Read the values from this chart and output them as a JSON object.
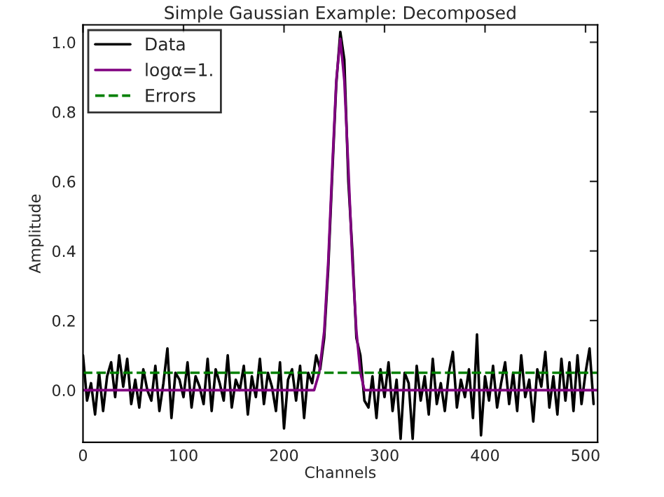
{
  "chart_data": {
    "type": "line",
    "title": "Simple Gaussian Example: Decomposed",
    "xlabel": "Channels",
    "ylabel": "Amplitude",
    "series": [
      {
        "name": "Data",
        "color": "#000000",
        "line_style": "solid",
        "x": [
          0,
          4,
          8,
          12,
          16,
          20,
          24,
          28,
          32,
          36,
          40,
          44,
          48,
          52,
          56,
          60,
          64,
          68,
          72,
          76,
          80,
          84,
          88,
          92,
          96,
          100,
          104,
          108,
          112,
          116,
          120,
          124,
          128,
          132,
          136,
          140,
          144,
          148,
          152,
          156,
          160,
          164,
          168,
          172,
          176,
          180,
          184,
          188,
          192,
          196,
          200,
          204,
          208,
          212,
          216,
          220,
          224,
          228,
          232,
          236,
          240,
          244,
          248,
          252,
          256,
          260,
          264,
          268,
          272,
          276,
          280,
          284,
          288,
          292,
          296,
          300,
          304,
          308,
          312,
          316,
          320,
          324,
          328,
          332,
          336,
          340,
          344,
          348,
          352,
          356,
          360,
          364,
          368,
          372,
          376,
          380,
          384,
          388,
          392,
          396,
          400,
          404,
          408,
          412,
          416,
          420,
          424,
          428,
          432,
          436,
          440,
          444,
          448,
          452,
          456,
          460,
          464,
          468,
          472,
          476,
          480,
          484,
          488,
          492,
          496,
          500,
          504,
          508
        ],
        "values": [
          0.1,
          -0.03,
          0.02,
          -0.07,
          0.05,
          -0.06,
          0.04,
          0.08,
          -0.02,
          0.1,
          0.01,
          0.09,
          -0.04,
          0.03,
          -0.05,
          0.06,
          0.0,
          -0.03,
          0.07,
          -0.06,
          0.02,
          0.12,
          -0.08,
          0.05,
          0.03,
          -0.02,
          0.08,
          -0.05,
          0.04,
          0.01,
          -0.04,
          0.09,
          -0.06,
          0.06,
          0.02,
          -0.03,
          0.1,
          -0.05,
          0.03,
          0.0,
          0.07,
          -0.07,
          0.04,
          -0.02,
          0.09,
          -0.04,
          0.05,
          0.01,
          -0.06,
          0.08,
          -0.11,
          0.03,
          0.06,
          -0.03,
          0.07,
          -0.08,
          0.05,
          0.02,
          0.1,
          0.06,
          0.15,
          0.35,
          0.62,
          0.88,
          1.03,
          0.95,
          0.6,
          0.4,
          0.15,
          0.1,
          -0.03,
          -0.05,
          0.04,
          -0.08,
          0.06,
          -0.02,
          0.08,
          -0.06,
          0.03,
          -0.14,
          0.05,
          0.02,
          -0.14,
          0.07,
          -0.03,
          0.04,
          -0.07,
          0.09,
          -0.04,
          0.02,
          -0.06,
          0.05,
          0.11,
          -0.05,
          0.03,
          -0.02,
          0.06,
          -0.08,
          0.16,
          -0.13,
          0.04,
          -0.03,
          0.07,
          -0.05,
          0.02,
          0.08,
          -0.04,
          0.05,
          -0.06,
          0.1,
          -0.02,
          0.03,
          -0.09,
          0.06,
          0.01,
          0.11,
          -0.05,
          0.04,
          -0.07,
          0.09,
          -0.03,
          0.08,
          -0.06,
          0.1,
          -0.04,
          0.05,
          0.12,
          -0.04
        ]
      },
      {
        "name": "logα=1.",
        "color": "#800080",
        "line_style": "solid",
        "x": [
          0,
          230,
          235,
          240,
          244,
          248,
          252,
          256,
          260,
          264,
          268,
          272,
          276,
          280,
          512
        ],
        "values": [
          0.0,
          0.0,
          0.05,
          0.17,
          0.37,
          0.64,
          0.89,
          1.01,
          0.89,
          0.64,
          0.37,
          0.17,
          0.05,
          0.0,
          0.0
        ]
      },
      {
        "name": "Errors",
        "color": "#008000",
        "line_style": "dashed",
        "x": [
          0,
          512
        ],
        "values": [
          0.05,
          0.05
        ]
      }
    ],
    "xlim": [
      0,
      512
    ],
    "xticks": [
      0,
      100,
      200,
      300,
      400,
      500
    ],
    "ylim": [
      -0.15,
      1.05
    ],
    "yticks": [
      {
        "value": 0,
        "label": "0.0"
      },
      0.2,
      0.4,
      0.6,
      0.8,
      {
        "value": 1,
        "label": "1.0"
      }
    ],
    "grid": false,
    "legend": "top left"
  }
}
